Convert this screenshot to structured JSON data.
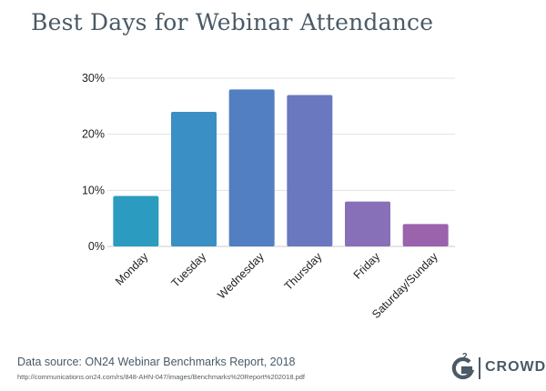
{
  "chart_data": {
    "type": "bar",
    "title": "Best Days for Webinar Attendance",
    "categories": [
      "Monday",
      "Tuesday",
      "Wednesday",
      "Thursday",
      "Friday",
      "Saturday/Sunday"
    ],
    "values": [
      9,
      24,
      28,
      27,
      8,
      4
    ],
    "yticks": [
      "0%",
      "10%",
      "20%",
      "30%"
    ],
    "ytick_values": [
      0,
      10,
      20,
      30
    ],
    "ylim": [
      0,
      30
    ],
    "xlabel": "",
    "ylabel": "",
    "grid": true,
    "colors": [
      "#2b9cc0",
      "#3a8fc4",
      "#527fc2",
      "#6a78c0",
      "#8870b8",
      "#9b63ac"
    ]
  },
  "footer": {
    "source": "Data source: ON24 Webinar Benchmarks Report, 2018",
    "url": "http://communications.on24.com/rs/848-AHN-047/images/Benchmarks%20Report%202018.pdf"
  },
  "logo": {
    "letter": "G",
    "superscript": "2",
    "text": "CROWD",
    "color": "#4a5a66"
  }
}
